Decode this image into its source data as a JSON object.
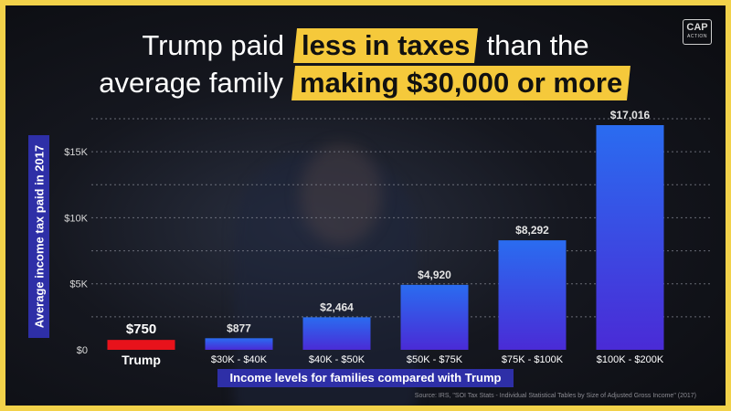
{
  "title": {
    "line1_pre": "Trump paid",
    "line1_hl": "less in taxes",
    "line1_post": "than the",
    "line2_pre": "average family",
    "line2_hl": "making $30,000 or more"
  },
  "logo": {
    "line1": "CAP",
    "line2": "ACTION"
  },
  "source": "Source: IRS, \"SOI Tax Stats - Individual Statistical Tables by Size of Adjusted Gross Income\" (2017)",
  "colors": {
    "highlight": "#f5c93b",
    "trump_bar": "#e8121b",
    "bar_top": "#2a6cf0",
    "bar_bottom": "#4a2bd6",
    "label_box": "#2e2fa7",
    "border": "#f2d24a"
  },
  "chart_data": {
    "type": "bar",
    "categories": [
      "Trump",
      "$30K - $40K",
      "$40K - $50K",
      "$50K - $75K",
      "$75K - $100K",
      "$100K - $200K"
    ],
    "values": [
      750,
      877,
      2464,
      4920,
      8292,
      17016
    ],
    "value_labels": [
      "$750",
      "$877",
      "$2,464",
      "$4,920",
      "$8,292",
      "$17,016"
    ],
    "highlight_index": 0,
    "xlabel": "Income levels for families compared with Trump",
    "ylabel": "Average income tax paid in 2017",
    "ylim": [
      0,
      17500
    ],
    "yticks": [
      0,
      5000,
      10000,
      15000
    ],
    "ytick_labels": [
      "$0",
      "$5K",
      "$10K",
      "$15K"
    ],
    "grid": true
  }
}
